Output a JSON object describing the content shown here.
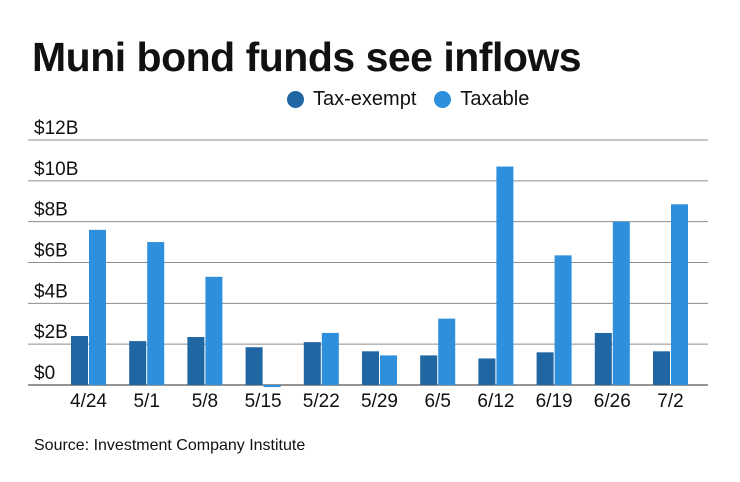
{
  "chart_data": {
    "type": "bar",
    "title": "Muni bond funds see inflows",
    "categories": [
      "4/24",
      "5/1",
      "5/8",
      "5/15",
      "5/22",
      "5/29",
      "6/5",
      "6/12",
      "6/19",
      "6/26",
      "7/2"
    ],
    "series": [
      {
        "name": "Tax-exempt",
        "color": "#1f66a3",
        "values": [
          2.4,
          2.15,
          2.35,
          1.85,
          2.1,
          1.65,
          1.45,
          1.3,
          1.6,
          2.55,
          1.65
        ]
      },
      {
        "name": "Taxable",
        "color": "#2e8fdc",
        "values": [
          7.6,
          7.0,
          5.3,
          -0.1,
          2.55,
          1.45,
          3.25,
          10.7,
          6.35,
          8.0,
          8.85
        ]
      }
    ],
    "ylim": [
      0,
      12
    ],
    "yticks": [
      0,
      2,
      4,
      6,
      8,
      10,
      12
    ],
    "ytick_labels": [
      "$0",
      "$2B",
      "$4B",
      "$6B",
      "$8B",
      "$10B",
      "$12B"
    ],
    "xlabel": "",
    "ylabel": "",
    "legend_position": "top",
    "grid": true,
    "source": "Source: Investment Company Institute"
  }
}
